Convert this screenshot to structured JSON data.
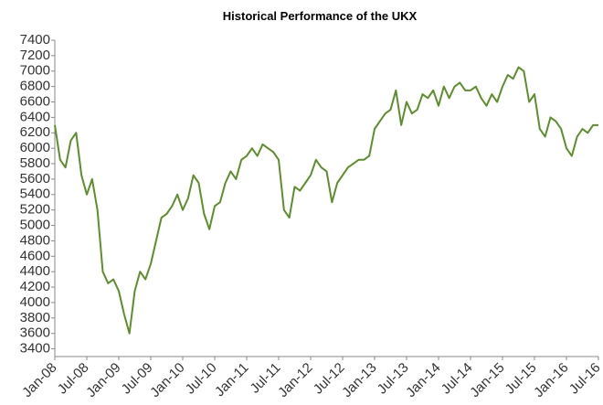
{
  "chart_data": {
    "type": "line",
    "title": "Historical Performance of the UKX",
    "x": [
      "2008-01",
      "2008-02",
      "2008-03",
      "2008-04",
      "2008-05",
      "2008-06",
      "2008-07",
      "2008-08",
      "2008-09",
      "2008-10",
      "2008-11",
      "2008-12",
      "2009-01",
      "2009-02",
      "2009-03",
      "2009-04",
      "2009-05",
      "2009-06",
      "2009-07",
      "2009-08",
      "2009-09",
      "2009-10",
      "2009-11",
      "2009-12",
      "2010-01",
      "2010-02",
      "2010-03",
      "2010-04",
      "2010-05",
      "2010-06",
      "2010-07",
      "2010-08",
      "2010-09",
      "2010-10",
      "2010-11",
      "2010-12",
      "2011-01",
      "2011-02",
      "2011-03",
      "2011-04",
      "2011-05",
      "2011-06",
      "2011-07",
      "2011-08",
      "2011-09",
      "2011-10",
      "2011-11",
      "2011-12",
      "2012-01",
      "2012-02",
      "2012-03",
      "2012-04",
      "2012-05",
      "2012-06",
      "2012-07",
      "2012-08",
      "2012-09",
      "2012-10",
      "2012-11",
      "2012-12",
      "2013-01",
      "2013-02",
      "2013-03",
      "2013-04",
      "2013-05",
      "2013-06",
      "2013-07",
      "2013-08",
      "2013-09",
      "2013-10",
      "2013-11",
      "2013-12",
      "2014-01",
      "2014-02",
      "2014-03",
      "2014-04",
      "2014-05",
      "2014-06",
      "2014-07",
      "2014-08",
      "2014-09",
      "2014-10",
      "2014-11",
      "2014-12",
      "2015-01",
      "2015-02",
      "2015-03",
      "2015-04",
      "2015-05",
      "2015-06",
      "2015-07",
      "2015-08",
      "2015-09",
      "2015-10",
      "2015-11",
      "2015-12",
      "2016-01",
      "2016-02",
      "2016-03",
      "2016-04",
      "2016-05",
      "2016-06",
      "2016-07"
    ],
    "series": [
      {
        "name": "UKX",
        "color": "#5b8f29",
        "values": [
          6300,
          5850,
          5750,
          6100,
          6200,
          5650,
          5400,
          5600,
          5200,
          4400,
          4250,
          4300,
          4150,
          3850,
          3600,
          4150,
          4400,
          4300,
          4500,
          4800,
          5100,
          5150,
          5250,
          5400,
          5200,
          5350,
          5650,
          5550,
          5150,
          4950,
          5250,
          5300,
          5550,
          5700,
          5600,
          5850,
          5900,
          6000,
          5900,
          6050,
          6000,
          5950,
          5850,
          5200,
          5100,
          5500,
          5450,
          5550,
          5650,
          5850,
          5750,
          5700,
          5300,
          5550,
          5650,
          5750,
          5800,
          5850,
          5850,
          5900,
          6250,
          6350,
          6450,
          6500,
          6750,
          6300,
          6600,
          6450,
          6500,
          6700,
          6650,
          6750,
          6550,
          6800,
          6650,
          6800,
          6850,
          6750,
          6750,
          6800,
          6650,
          6550,
          6700,
          6600,
          6800,
          6950,
          6900,
          7050,
          7000,
          6600,
          6700,
          6250,
          6150,
          6400,
          6350,
          6250,
          6000,
          5900,
          6150,
          6250,
          6200,
          6300,
          6300
        ]
      }
    ],
    "xlim": [
      "2008-01",
      "2016-07"
    ],
    "xticks": [
      {
        "value": "2008-01",
        "label": "Jan-08"
      },
      {
        "value": "2008-07",
        "label": "Jul-08"
      },
      {
        "value": "2009-01",
        "label": "Jan-09"
      },
      {
        "value": "2009-07",
        "label": "Jul-09"
      },
      {
        "value": "2010-01",
        "label": "Jan-10"
      },
      {
        "value": "2010-07",
        "label": "Jul-10"
      },
      {
        "value": "2011-01",
        "label": "Jan-11"
      },
      {
        "value": "2011-07",
        "label": "Jul-11"
      },
      {
        "value": "2012-01",
        "label": "Jan-12"
      },
      {
        "value": "2012-07",
        "label": "Jul-12"
      },
      {
        "value": "2013-01",
        "label": "Jan-13"
      },
      {
        "value": "2013-07",
        "label": "Jul-13"
      },
      {
        "value": "2014-01",
        "label": "Jan-14"
      },
      {
        "value": "2014-07",
        "label": "Jul-14"
      },
      {
        "value": "2015-01",
        "label": "Jan-15"
      },
      {
        "value": "2015-07",
        "label": "Jul-15"
      },
      {
        "value": "2016-01",
        "label": "Jan-16"
      },
      {
        "value": "2016-07",
        "label": "Jul-16"
      }
    ],
    "ylim": [
      3300,
      7400
    ],
    "yticks": [
      3400,
      3600,
      3800,
      4000,
      4200,
      4400,
      4600,
      4800,
      5000,
      5200,
      5400,
      5600,
      5800,
      6000,
      6200,
      6400,
      6600,
      6800,
      7000,
      7200,
      7400
    ],
    "grid": false
  }
}
